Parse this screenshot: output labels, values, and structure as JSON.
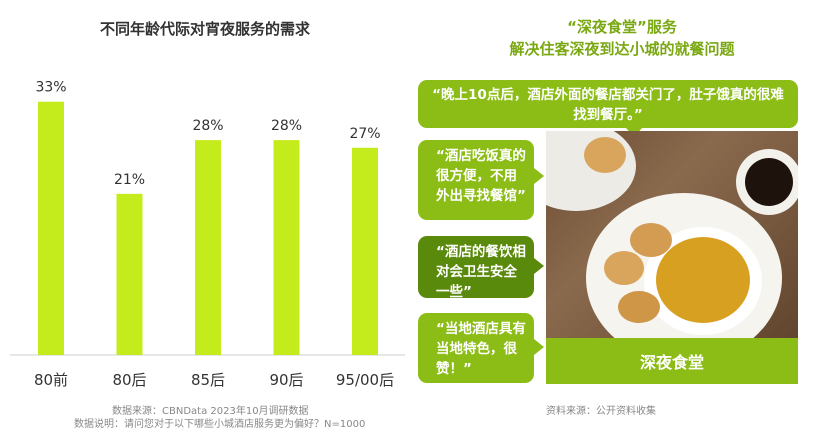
{
  "chart_data": {
    "type": "bar",
    "title": "不同年龄代际对宵夜服务的需求",
    "categories": [
      "80前",
      "80后",
      "85后",
      "90后",
      "95/00后"
    ],
    "values": [
      33,
      21,
      28,
      28,
      27
    ],
    "value_labels": [
      "33%",
      "21%",
      "28%",
      "28%",
      "27%"
    ],
    "unit": "%",
    "ylim": [
      0,
      40
    ],
    "grid": false,
    "legend": "none",
    "bar_color": "#c4ec1c"
  },
  "notes": {
    "source_left": "数据来源：CBNData 2023年10月调研数据",
    "desc_left": "数据说明：请问您对于以下哪些小城酒店服务更为偏好？N=1000",
    "source_right": "资料来源：公开资料收集"
  },
  "right_panel": {
    "title_line1": "“深夜食堂”服务",
    "title_line2": "解决住客深夜到达小城的就餐问题",
    "quote_top": "“晚上10点后，酒店外面的餐店都关门了，肚子饿真的很难找到餐厅。”",
    "quote_1": "“酒店吃饭真的很方便，不用外出寻找餐馆”",
    "quote_2": "“酒店的餐饮相对会卫生安全一些”",
    "quote_3": "“当地酒店具有当地特色，很赞！”",
    "photo_caption": "深夜食堂",
    "accent_color": "#8bbd16",
    "accent_dark": "#5a8a0c",
    "title_color": "#7aa812"
  }
}
